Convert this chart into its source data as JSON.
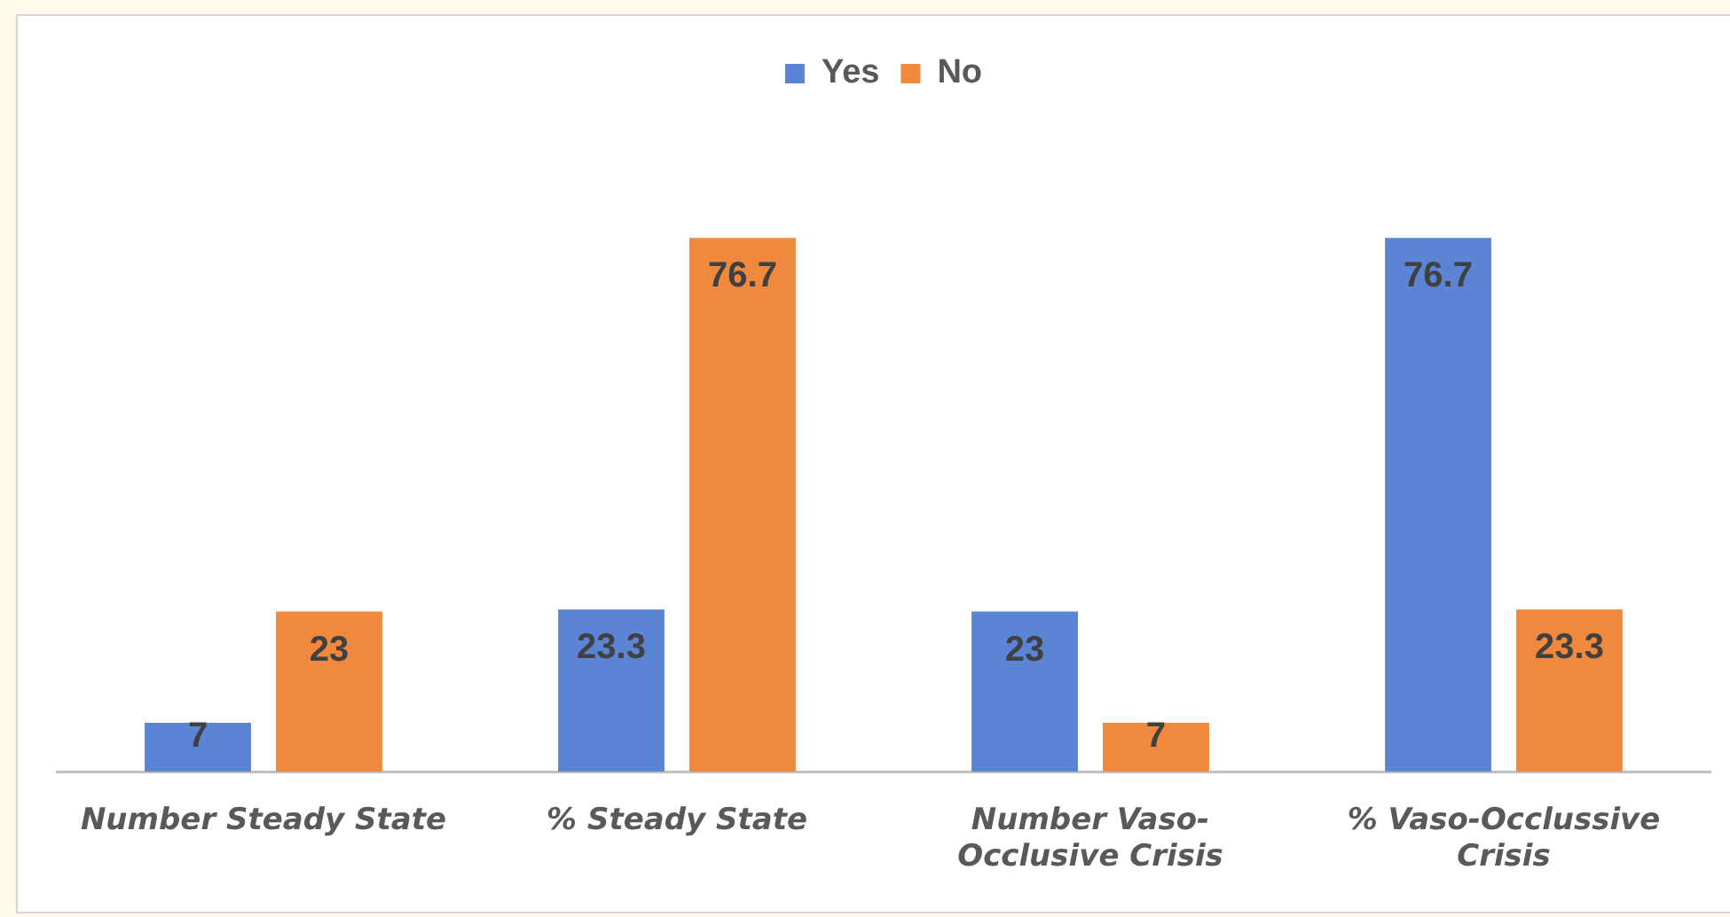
{
  "chart_data": {
    "type": "bar",
    "categories": [
      "Number Steady State",
      "% Steady State",
      "Number Vaso-Occlusive Crisis",
      "% Vaso-Occlussive Crisis"
    ],
    "series": [
      {
        "name": "Yes",
        "color": "#5b84d4",
        "values": [
          7,
          23.3,
          23,
          76.7
        ]
      },
      {
        "name": "No",
        "color": "#f0883e",
        "values": [
          23,
          76.7,
          7,
          23.3
        ]
      }
    ],
    "data_labels": true,
    "legend": "top",
    "tick_labels": "x"
  }
}
